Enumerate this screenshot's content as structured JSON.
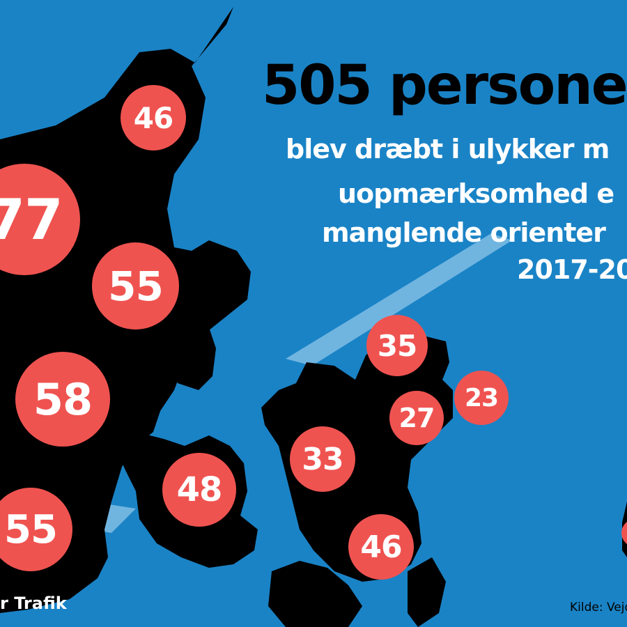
{
  "headline": {
    "title": "505 persone",
    "subtitle_lines": [
      "blev dræbt i ulykker m",
      "uopmærksomhed e",
      "manglende orienter",
      "2017-20"
    ]
  },
  "regions": [
    {
      "id": "north-jutland",
      "value": "46"
    },
    {
      "id": "west-jutland",
      "value": "77"
    },
    {
      "id": "east-jutland",
      "value": "55"
    },
    {
      "id": "central-jutland",
      "value": "58"
    },
    {
      "id": "south-jutland",
      "value": "55"
    },
    {
      "id": "funen",
      "value": "48"
    },
    {
      "id": "north-zealand",
      "value": "35"
    },
    {
      "id": "copenhagen-area",
      "value": "27"
    },
    {
      "id": "copenhagen-city",
      "value": "23"
    },
    {
      "id": "west-zealand",
      "value": "33"
    },
    {
      "id": "south-zealand",
      "value": "46"
    }
  ],
  "brand": "r Trafik",
  "source": "Kilde: Vejd",
  "colors": {
    "sea": "#1a83c6",
    "land": "#000000",
    "badge": "#ef5350",
    "text": "#ffffff",
    "highlight": "#8ec5e8"
  }
}
